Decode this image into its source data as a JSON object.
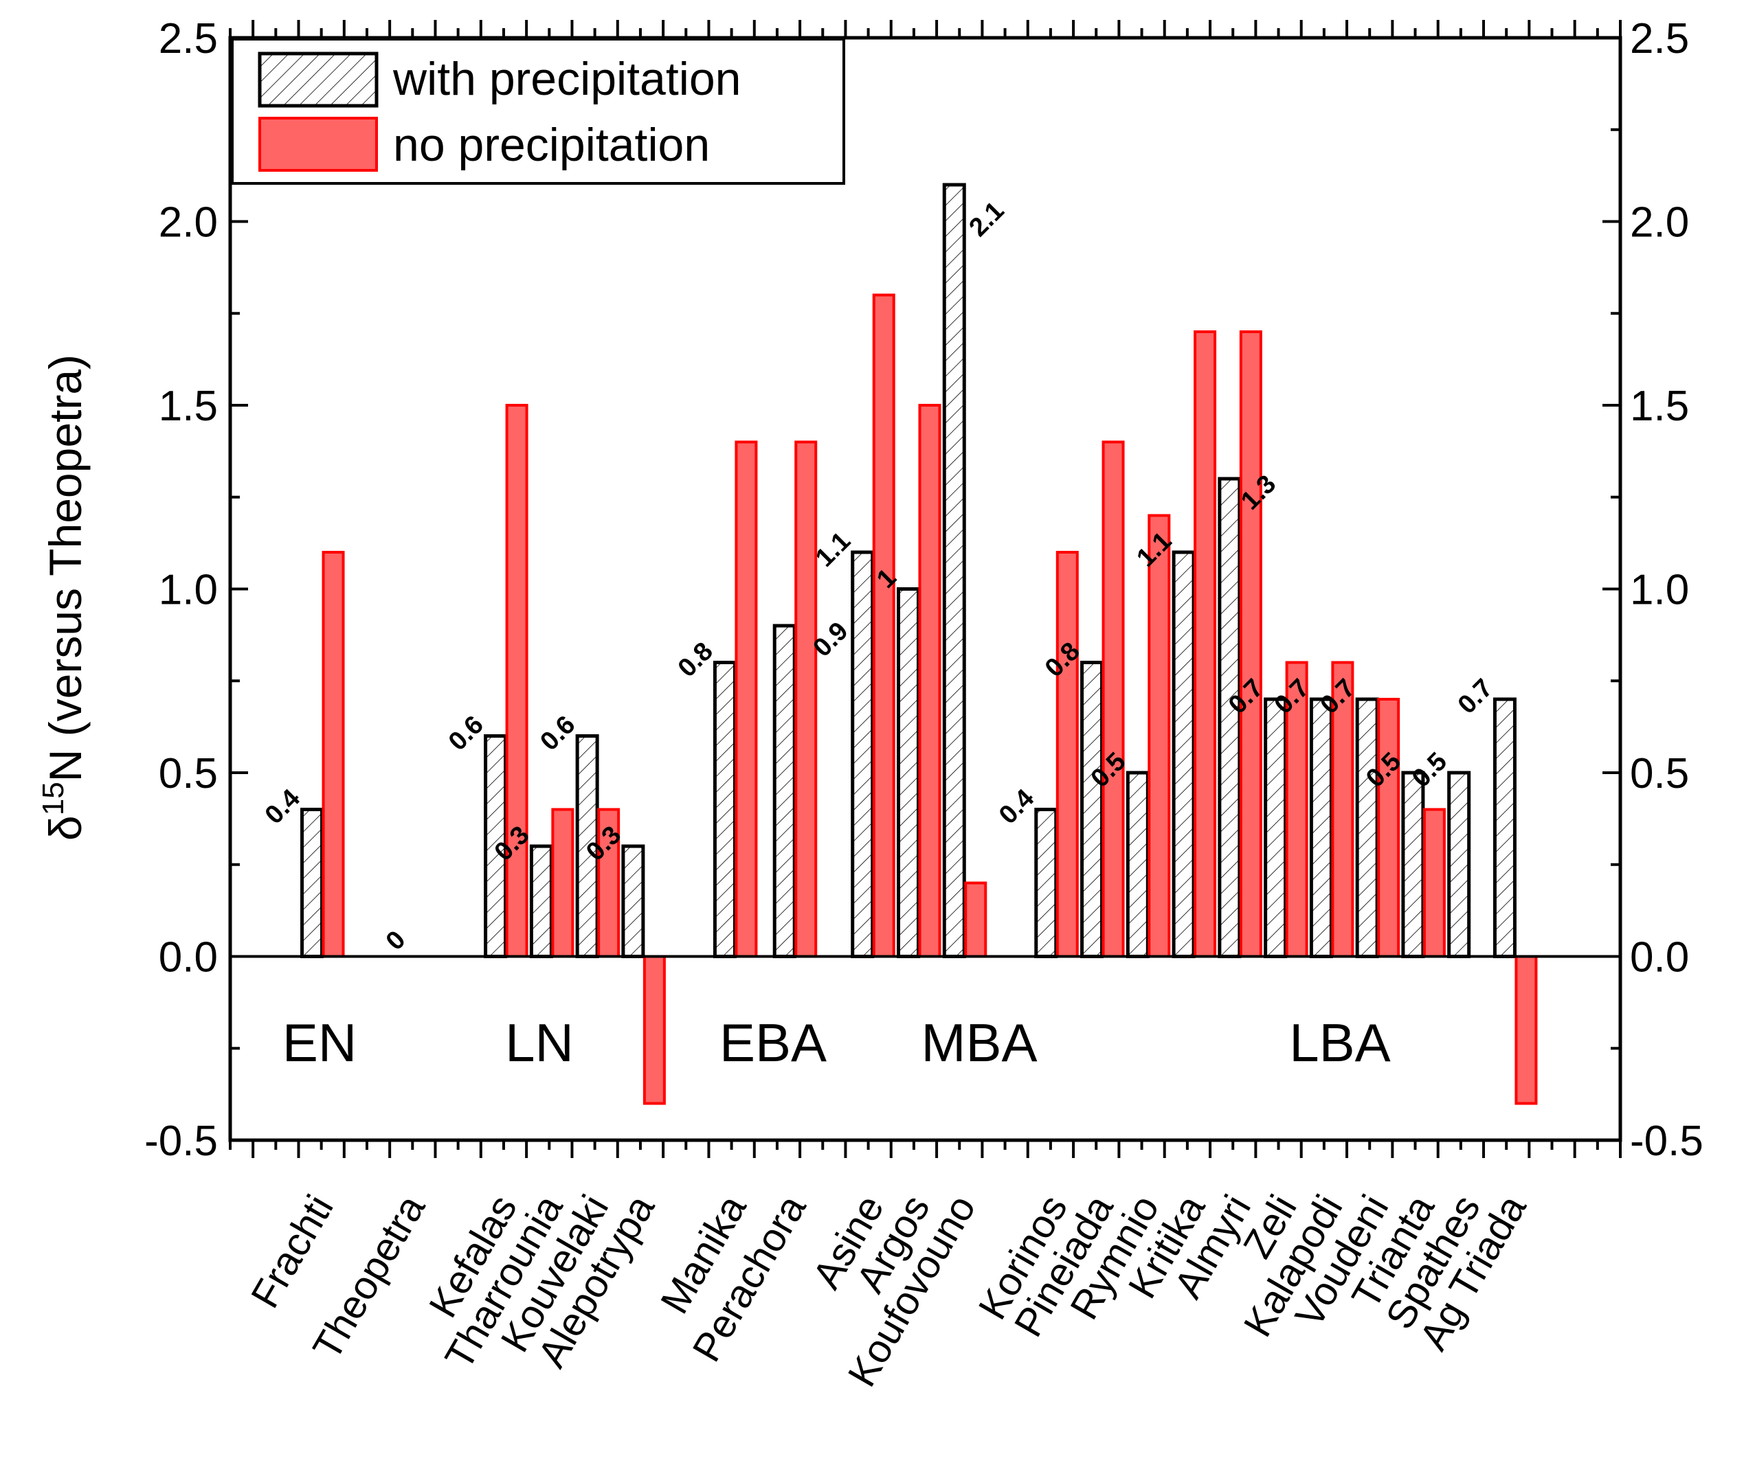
{
  "chart_data": {
    "type": "bar",
    "ylabel": "δ15N (versus Theopetra)",
    "ylabel_main": "δ",
    "ylabel_sup": "15",
    "ylabel_rest": "N (versus Theopetra)",
    "ylim": [
      -0.5,
      2.5
    ],
    "yticks": [
      -0.5,
      0.0,
      0.5,
      1.0,
      1.5,
      2.0,
      2.5
    ],
    "ytick_labels": [
      "-0.5",
      "0.0",
      "0.5",
      "1.0",
      "1.5",
      "2.0",
      "2.5"
    ],
    "legend_position": "top-left",
    "legend": [
      {
        "name": "with precipitation",
        "style": "hatched",
        "color": "#000000"
      },
      {
        "name": "no precipitation",
        "style": "filled",
        "color": "#ff3a3a"
      }
    ],
    "categories": [
      "Frachti",
      "Theopetra",
      "Kefalas",
      "Tharrounia",
      "Kouvelaki",
      "Alepotrypa",
      "Manika",
      "Perachora",
      "Asine",
      "Argos",
      "Koufovouno",
      "Korinos",
      "Pineiada",
      "Rymnio",
      "Kritika",
      "Almyri",
      "Zeli",
      "Kalapodi",
      "Voudeni",
      "Trianta",
      "Spathes",
      "Ag Triada"
    ],
    "periods": [
      {
        "label": "EN",
        "categories": [
          "Frachti",
          "Theopetra"
        ]
      },
      {
        "label": "LN",
        "categories": [
          "Kefalas",
          "Tharrounia",
          "Kouvelaki",
          "Alepotrypa"
        ]
      },
      {
        "label": "EBA",
        "categories": [
          "Manika",
          "Perachora"
        ]
      },
      {
        "label": "MBA",
        "categories": [
          "Asine",
          "Argos",
          "Koufovouno"
        ]
      },
      {
        "label": "LBA",
        "categories": [
          "Korinos",
          "Pineiada",
          "Rymnio",
          "Kritika",
          "Almyri",
          "Zeli",
          "Kalapodi",
          "Voudeni",
          "Trianta",
          "Spathes",
          "Ag Triada"
        ]
      }
    ],
    "series": [
      {
        "name": "with precipitation",
        "values": [
          0.4,
          null,
          0.6,
          0.3,
          0.6,
          0.3,
          0.8,
          0.9,
          1.1,
          1.0,
          2.1,
          0.4,
          0.8,
          0.5,
          1.1,
          1.3,
          0.7,
          0.7,
          0.7,
          0.5,
          0.5,
          0.7
        ]
      },
      {
        "name": "no precipitation",
        "values": [
          1.1,
          null,
          1.5,
          0.4,
          0.4,
          -0.4,
          1.4,
          1.4,
          1.8,
          1.5,
          0.2,
          1.1,
          1.4,
          1.2,
          1.7,
          1.7,
          0.8,
          0.8,
          0.7,
          0.4,
          null,
          -0.4
        ]
      }
    ],
    "data_labels": [
      {
        "category": "Frachti",
        "text": "0.4"
      },
      {
        "category": "Theopetra",
        "text": "0"
      },
      {
        "category": "Kefalas",
        "text": "0.6"
      },
      {
        "category": "Tharrounia",
        "text": "0.3"
      },
      {
        "category": "Kouvelaki",
        "text": "0.6"
      },
      {
        "category": "Alepotrypa",
        "text": "0.3"
      },
      {
        "category": "Manika",
        "text": "0.8"
      },
      {
        "category": "Perachora",
        "text": "0.9"
      },
      {
        "category": "Asine",
        "text": "1.1"
      },
      {
        "category": "Argos",
        "text": "1"
      },
      {
        "category": "Koufovouno",
        "text": "2.1"
      },
      {
        "category": "Korinos",
        "text": "0.4"
      },
      {
        "category": "Pineiada",
        "text": "0.8"
      },
      {
        "category": "Rymnio",
        "text": "0.5"
      },
      {
        "category": "Kritika",
        "text": "1.1"
      },
      {
        "category": "Almyri",
        "text": "1.3"
      },
      {
        "category": "Zeli",
        "text": "0.7"
      },
      {
        "category": "Kalapodi",
        "text": "0.7"
      },
      {
        "category": "Voudeni",
        "text": "0.7"
      },
      {
        "category": "Trianta",
        "text": "0.5"
      },
      {
        "category": "Spathes",
        "text": "0.5"
      },
      {
        "category": "Ag Triada",
        "text": "0.7"
      }
    ],
    "grid": false
  }
}
